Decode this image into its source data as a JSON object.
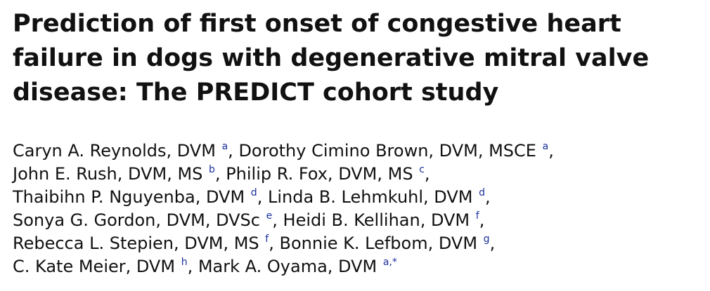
{
  "article": {
    "title_lines": [
      "Prediction of first onset of congestive heart",
      "failure in dogs with degenerative mitral valve",
      "disease: The PREDICT cohort study"
    ],
    "authors": [
      {
        "name": "Caryn A. Reynolds, DVM",
        "aff": "a"
      },
      {
        "name": "Dorothy Cimino Brown, DVM, MSCE",
        "aff": "a"
      },
      {
        "name": "John E. Rush, DVM, MS",
        "aff": "b"
      },
      {
        "name": "Philip R. Fox, DVM, MS",
        "aff": "c"
      },
      {
        "name": "Thaibihn P. Nguyenba, DVM",
        "aff": "d"
      },
      {
        "name": "Linda B. Lehmkuhl, DVM",
        "aff": "d"
      },
      {
        "name": "Sonya G. Gordon, DVM, DVSc",
        "aff": "e"
      },
      {
        "name": "Heidi B. Kellihan, DVM",
        "aff": "f"
      },
      {
        "name": "Rebecca L. Stepien, DVM, MS",
        "aff": "f"
      },
      {
        "name": "Bonnie K. Lefbom, DVM",
        "aff": "g"
      },
      {
        "name": "C. Kate Meier, DVM",
        "aff": "h"
      },
      {
        "name": "Mark A. Oyama, DVM",
        "aff": "a,*"
      }
    ],
    "separator": ", ",
    "line_end": ","
  },
  "colors": {
    "text": "#111111",
    "affiliation_link": "#1a2f9a"
  }
}
